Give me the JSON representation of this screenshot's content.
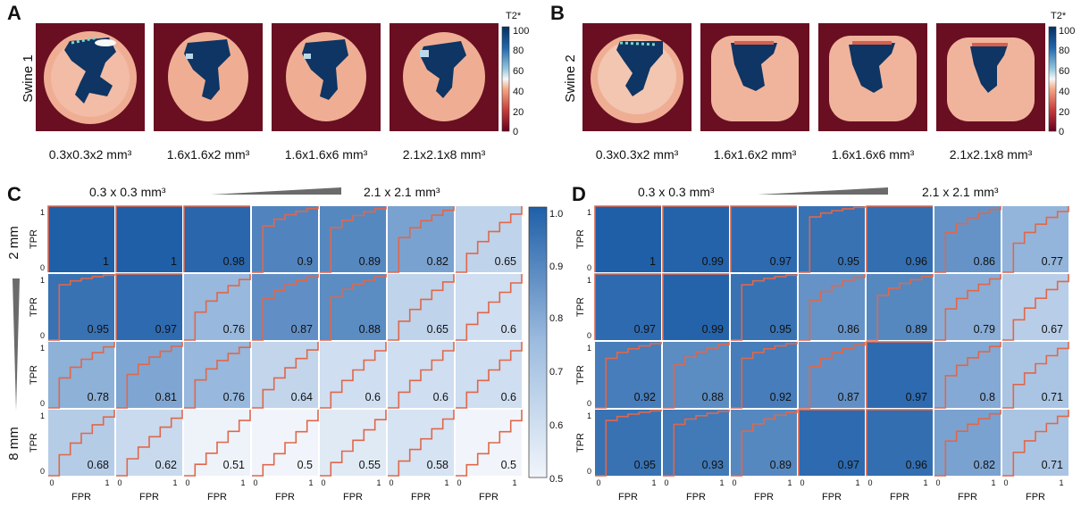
{
  "panels": {
    "A": {
      "letter": "A",
      "row_label": "Swine 1"
    },
    "B": {
      "letter": "B",
      "row_label": "Swine 2"
    },
    "C": {
      "letter": "C"
    },
    "D": {
      "letter": "D"
    }
  },
  "resolution_labels": [
    "0.3x0.3x2 mm³",
    "1.6x1.6x2 mm³",
    "1.6x1.6x6 mm³",
    "2.1x2.1x8 mm³"
  ],
  "t2_colorbar": {
    "title": "T2*",
    "ticks": [
      "100",
      "80",
      "60",
      "40",
      "20",
      "0"
    ]
  },
  "roc_header": {
    "left": "0.3 x 0.3 mm³",
    "right": "2.1 x 2.1 mm³"
  },
  "slice_labels": {
    "top": "2 mm",
    "bottom": "8 mm"
  },
  "auc_colorbar": {
    "ticks": [
      "1.0",
      "0.9",
      "0.8",
      "0.7",
      "0.6",
      "0.5"
    ],
    "min": 0.5,
    "max": 1.0
  },
  "axes": {
    "x_label": "FPR",
    "y_label": "TPR",
    "tick0": "0",
    "tick1": "1"
  },
  "chart_data": [
    {
      "type": "heatmap",
      "panel": "C",
      "xlabel": "FPR",
      "ylabel": "TPR",
      "rows": [
        "2 mm",
        "",
        "",
        "8 mm"
      ],
      "columns_from": "0.3 x 0.3 mm³",
      "columns_to": "2.1 x 2.1 mm³",
      "values": [
        [
          "1",
          "1",
          "0.98",
          "0.9",
          "0.89",
          "0.82",
          "0.65"
        ],
        [
          "0.95",
          "0.97",
          "0.76",
          "0.87",
          "0.88",
          "0.65",
          "0.6"
        ],
        [
          "0.78",
          "0.81",
          "0.76",
          "0.64",
          "0.6",
          "0.6",
          "0.6"
        ],
        [
          "0.68",
          "0.62",
          "0.51",
          "0.5",
          "0.55",
          "0.58",
          "0.5"
        ]
      ]
    },
    {
      "type": "heatmap",
      "panel": "D",
      "xlabel": "FPR",
      "ylabel": "TPR",
      "rows": [
        "2 mm",
        "",
        "",
        "8 mm"
      ],
      "columns_from": "0.3 x 0.3 mm³",
      "columns_to": "2.1 x 2.1 mm³",
      "values": [
        [
          "1",
          "0.99",
          "0.97",
          "0.95",
          "0.96",
          "0.86",
          "0.77"
        ],
        [
          "0.97",
          "0.99",
          "0.95",
          "0.86",
          "0.89",
          "0.79",
          "0.67"
        ],
        [
          "0.92",
          "0.88",
          "0.92",
          "0.87",
          "0.97",
          "0.8",
          "0.71"
        ],
        [
          "0.95",
          "0.93",
          "0.89",
          "0.97",
          "0.96",
          "0.82",
          "0.71"
        ]
      ]
    }
  ]
}
